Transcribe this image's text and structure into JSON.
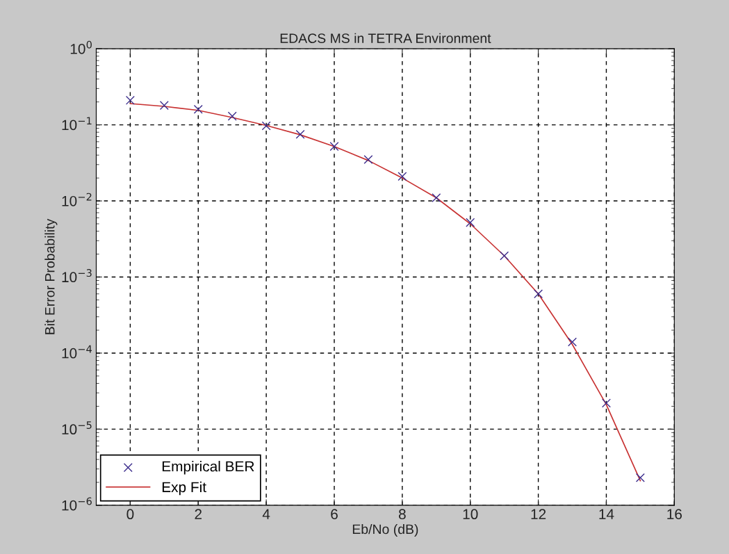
{
  "chart_data": {
    "type": "scatter",
    "title": "EDACS MS in TETRA Environment",
    "xlabel": "Eb/No (dB)",
    "ylabel": "Bit Error Probability",
    "x": [
      0,
      1,
      2,
      3,
      4,
      5,
      6,
      7,
      8,
      9,
      10,
      11,
      12,
      13,
      14,
      15
    ],
    "series": [
      {
        "name": "Empirical BER",
        "marker": "cross",
        "color": "#3c2d8c",
        "values": [
          0.21,
          0.18,
          0.16,
          0.13,
          0.097,
          0.075,
          0.052,
          0.035,
          0.021,
          0.011,
          0.0052,
          0.0019,
          0.0006,
          0.00014,
          2.2e-05,
          2.3e-06
        ]
      },
      {
        "name": "Exp Fit",
        "type": "line",
        "line_style": "solid",
        "color": "#c83232",
        "x": [
          0,
          1,
          2,
          3,
          4,
          5,
          6,
          7,
          8,
          9,
          10,
          11,
          12,
          13,
          14,
          15
        ],
        "values": [
          0.19,
          0.175,
          0.155,
          0.125,
          0.098,
          0.074,
          0.052,
          0.034,
          0.02,
          0.011,
          0.005,
          0.0019,
          0.0006,
          0.00013,
          2.1e-05,
          2.1e-06
        ]
      }
    ],
    "log": "y",
    "xlim": [
      -1,
      16
    ],
    "xticks": [
      0,
      2,
      4,
      6,
      8,
      10,
      12,
      14,
      16
    ],
    "ylim": [
      1e-06,
      1
    ],
    "yticks": [
      {
        "value": 1e-06,
        "label": "10$^{−6}$"
      },
      {
        "value": 1e-05,
        "label": "10$^{−5}$"
      },
      {
        "value": 0.0001,
        "label": "10$^{−4}$"
      },
      {
        "value": 0.001,
        "label": "10$^{−3}$"
      },
      {
        "value": 0.01,
        "label": "10$^{−2}$"
      },
      {
        "value": 0.1,
        "label": "10$^{−1}$"
      },
      {
        "value": 1,
        "label": "10$^{0}$"
      }
    ],
    "grid": true,
    "legend": "bottom left"
  }
}
